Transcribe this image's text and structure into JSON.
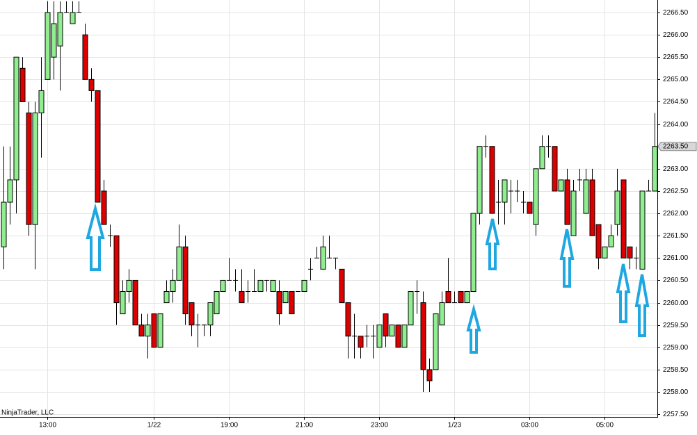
{
  "chart_data": {
    "type": "candlestick",
    "watermark": "NinjaTrader, LLC",
    "x": [
      null,
      null,
      null,
      null,
      null,
      null,
      null,
      "13:00",
      null,
      null,
      null,
      null,
      null,
      null,
      null,
      null,
      null,
      null,
      null,
      null,
      null,
      null,
      null,
      null,
      "1/22",
      null,
      null,
      null,
      null,
      null,
      null,
      null,
      null,
      null,
      null,
      null,
      "19:00",
      null,
      null,
      null,
      null,
      null,
      null,
      null,
      null,
      null,
      null,
      null,
      "21:00",
      null,
      null,
      null,
      null,
      null,
      null,
      null,
      null,
      null,
      null,
      null,
      "23:00",
      null,
      null,
      null,
      null,
      null,
      null,
      null,
      null,
      null,
      null,
      null,
      "1/23",
      null,
      null,
      null,
      null,
      null,
      null,
      null,
      null,
      null,
      null,
      null,
      "03:00",
      null,
      null,
      null,
      null,
      null,
      null,
      null,
      null,
      null,
      null,
      null,
      "05:00",
      null,
      null,
      null,
      null,
      null,
      null,
      null,
      null
    ],
    "open": [
      2261.25,
      2262.25,
      2262.75,
      2265.25,
      2264.25,
      2261.75,
      2264.25,
      2265,
      2265.5,
      2265.75,
      2266.5,
      2266.25,
      2266.5,
      2266,
      2265,
      2264.75,
      2262.5,
      2261.5,
      2261.5,
      2259.75,
      2260.25,
      2260.5,
      2259.5,
      2259.25,
      2259.75,
      2259,
      2260,
      2260.25,
      2260.5,
      2261.25,
      2260,
      2259.5,
      2259.5,
      2259.5,
      2259.75,
      2260.25,
      2260.5,
      2260.5,
      2260.25,
      2260.25,
      2260.25,
      2260.25,
      2260.5,
      2260.25,
      2260.25,
      2260,
      2260.25,
      2260.25,
      2260.25,
      2260.75,
      2261,
      2260.75,
      2261,
      2261,
      2260.75,
      2260,
      2259.25,
      2259.25,
      2259.25,
      2259.25,
      2259,
      2259.75,
      2259.25,
      2259.5,
      2259,
      2259.5,
      2260.25,
      2260,
      2258.5,
      2258.5,
      2259.5,
      2260.25,
      2260,
      2260.25,
      2260,
      2260.25,
      2262,
      2263.5,
      2263.5,
      2262.25,
      2262.25,
      2262.5,
      2262.5,
      2262.25,
      2262.25,
      2261.75,
      2263,
      2263.5,
      2263.5,
      2262.5,
      2262.75,
      2261.5,
      2262.75,
      2262,
      2262.75,
      2261.75,
      2261,
      2261.25,
      2261.75,
      2262.75,
      2261.25,
      2261,
      2260.75,
      2262.5,
      2262.5
    ],
    "high": [
      2263.5,
      2263.5,
      2265.5,
      2265.5,
      2264.5,
      2264.5,
      2265.5,
      2266.75,
      2266.75,
      2266.75,
      2266.75,
      2266.75,
      2266.75,
      2266.25,
      2265.25,
      2264.75,
      2262.75,
      2261.75,
      2261.5,
      2260.5,
      2260.75,
      2260.5,
      2259.75,
      2259.75,
      2259.75,
      2259.75,
      2260.5,
      2260.75,
      2261.75,
      2261.5,
      2260,
      2259.75,
      2259.5,
      2260,
      2260.25,
      2260.5,
      2261,
      2260.75,
      2260.75,
      2260.5,
      2260.75,
      2260.5,
      2260.5,
      2260.5,
      2260.5,
      2260.25,
      2260.25,
      2260.25,
      2260.5,
      2261,
      2261.25,
      2261.5,
      2261.5,
      2261,
      2260.75,
      2260,
      2259.75,
      2259.25,
      2259.5,
      2259.5,
      2259.5,
      2259.75,
      2259.5,
      2259.5,
      2259.5,
      2260.25,
      2260.5,
      2260.25,
      2258.75,
      2259.75,
      2260.25,
      2261,
      2260.25,
      2260.25,
      2260.25,
      2262,
      2263.5,
      2263.75,
      2263.5,
      2262.75,
      2262.75,
      2262.75,
      2262.75,
      2262.5,
      2262.25,
      2263,
      2263.75,
      2263.75,
      2263.5,
      2262.75,
      2263,
      2262.75,
      2263,
      2263,
      2263,
      2261.75,
      2261.25,
      2261.75,
      2263,
      2262.75,
      2261.25,
      2261.25,
      2262.5,
      2262.75,
      2264.25
    ],
    "low": [
      2260.75,
      2261.75,
      2262,
      2264.5,
      2261.5,
      2260.75,
      2263.25,
      2265,
      2265,
      2264.75,
      2266.5,
      2266.25,
      2266.5,
      2265,
      2264.5,
      2262.25,
      2261.75,
      2261.25,
      2259.5,
      2259.75,
      2260,
      2259.5,
      2259.25,
      2258.75,
      2259,
      2259,
      2260,
      2260,
      2260.5,
      2259.5,
      2259.25,
      2259,
      2259.25,
      2259.25,
      2259.75,
      2260.25,
      2260.5,
      2260.25,
      2260,
      2260,
      2260.25,
      2260.25,
      2260.25,
      2260.25,
      2259.5,
      2260,
      2259.75,
      2260.25,
      2260.25,
      2260.5,
      2261,
      2260.75,
      2261,
      2260.75,
      2260,
      2258.75,
      2258.75,
      2258.75,
      2259,
      2258.75,
      2259,
      2259,
      2259.25,
      2259,
      2259,
      2259.5,
      2259.75,
      2258,
      2258,
      2258.5,
      2259.5,
      2260,
      2260,
      2260,
      2260,
      2260.25,
      2261.75,
      2263.25,
      2262,
      2261.75,
      2261.75,
      2262,
      2262.25,
      2262,
      2262,
      2261.5,
      2263,
      2263.25,
      2262.5,
      2262.5,
      2261.75,
      2261.5,
      2262.5,
      2262,
      2261.5,
      2260.75,
      2261,
      2261.25,
      2261.5,
      2261,
      2260.75,
      2260.75,
      2260.75,
      2262.5,
      2262.5
    ],
    "close": [
      2262.25,
      2262.75,
      2265.5,
      2264.5,
      2261.75,
      2264.25,
      2264.75,
      2266.5,
      2266.25,
      2266.5,
      2266.5,
      2266.5,
      2266.5,
      2265,
      2264.75,
      2262.25,
      2261.75,
      2261.5,
      2260,
      2260.25,
      2260.5,
      2259.5,
      2259.25,
      2259.5,
      2259,
      2259.75,
      2260.25,
      2260.5,
      2261.25,
      2259.75,
      2259.5,
      2259.5,
      2259.5,
      2260,
      2260.25,
      2260.5,
      2260.5,
      2260.5,
      2260,
      2260.25,
      2260.25,
      2260.5,
      2260.5,
      2260.5,
      2259.75,
      2260.25,
      2259.75,
      2260.25,
      2260.5,
      2260.75,
      2261,
      2261.25,
      2261,
      2261,
      2260,
      2259.25,
      2259.25,
      2259,
      2259.25,
      2259.25,
      2259.5,
      2259.25,
      2259.5,
      2259,
      2259.5,
      2260.25,
      2260.25,
      2258.5,
      2258.25,
      2259.75,
      2260,
      2260,
      2260,
      2260,
      2260.25,
      2262,
      2263.5,
      2263.5,
      2262,
      2262.25,
      2262.75,
      2262.5,
      2262.5,
      2262.25,
      2262,
      2263,
      2263.5,
      2263.5,
      2262.5,
      2262.75,
      2261.75,
      2262.5,
      2262.75,
      2262.75,
      2261.5,
      2261,
      2261.25,
      2261.5,
      2262.5,
      2261,
      2261,
      2261,
      2262.5,
      2262.5,
      2263.5
    ],
    "up_color": "#90ee90",
    "down_color": "#dd0000",
    "ylim": [
      2257.44,
      2266.78
    ],
    "yticks": [
      {
        "value": 2257.5,
        "label": "2257.50"
      },
      {
        "value": 2258,
        "label": "2258.00"
      },
      {
        "value": 2258.5,
        "label": "2258.50"
      },
      {
        "value": 2259,
        "label": "2259.00"
      },
      {
        "value": 2259.5,
        "label": "2259.50"
      },
      {
        "value": 2260,
        "label": "2260.00"
      },
      {
        "value": 2260.5,
        "label": "2260.50"
      },
      {
        "value": 2261,
        "label": "2261.00"
      },
      {
        "value": 2261.5,
        "label": "2261.50"
      },
      {
        "value": 2262,
        "label": "2262.00"
      },
      {
        "value": 2262.5,
        "label": "2262.50"
      },
      {
        "value": 2263,
        "label": "2263.00"
      },
      {
        "value": 2264,
        "label": "2264.00"
      },
      {
        "value": 2264.5,
        "label": "2264.50"
      },
      {
        "value": 2265,
        "label": "2265.00"
      },
      {
        "value": 2265.5,
        "label": "2265.50"
      },
      {
        "value": 2266,
        "label": "2266.00"
      },
      {
        "value": 2266.5,
        "label": "2266.50"
      }
    ],
    "last_price": {
      "value": 2263.5,
      "label": "2263.50"
    },
    "grid": true
  }
}
